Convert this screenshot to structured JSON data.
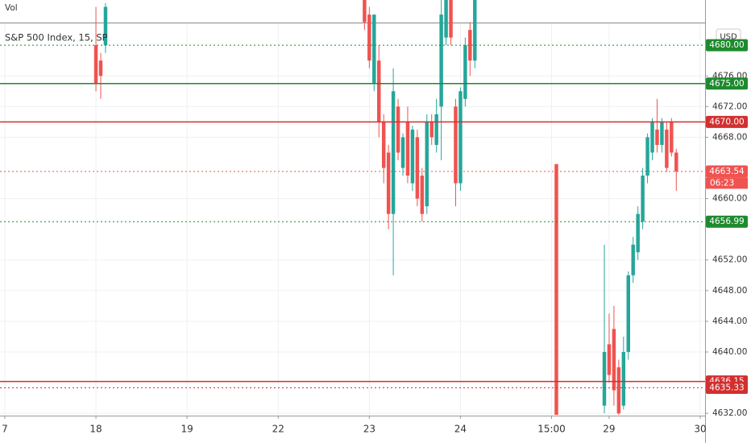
{
  "chart_data": {
    "type": "candlestick",
    "title": "S&P 500 Index, 15, SP",
    "volume_label": "Vol",
    "currency": "USD",
    "up_color": "#26a69a",
    "down_color": "#ef5350",
    "grid": true,
    "xlim": [
      0,
      147
    ],
    "ylim": [
      4631.7,
      4685.9
    ],
    "xticks": [
      {
        "value": 1,
        "label": "7"
      },
      {
        "value": 20,
        "label": "18"
      },
      {
        "value": 39,
        "label": "19"
      },
      {
        "value": 58,
        "label": "22"
      },
      {
        "value": 77,
        "label": "23"
      },
      {
        "value": 96,
        "label": "24"
      },
      {
        "value": 115,
        "label": "15:00"
      },
      {
        "value": 127,
        "label": "29"
      },
      {
        "value": 146,
        "label": "30"
      }
    ],
    "yticks": [
      {
        "value": 4632,
        "label": "4632.00"
      },
      {
        "value": 4640,
        "label": "4640.00"
      },
      {
        "value": 4644,
        "label": "4644.00"
      },
      {
        "value": 4648,
        "label": "4648.00"
      },
      {
        "value": 4652,
        "label": "4652.00"
      },
      {
        "value": 4660,
        "label": "4660.00"
      },
      {
        "value": 4668,
        "label": "4668.00"
      },
      {
        "value": 4672,
        "label": "4672.00"
      },
      {
        "value": 4676,
        "label": "4676.00"
      }
    ],
    "x": [
      20,
      21,
      22,
      76,
      77,
      78,
      79,
      80,
      81,
      82,
      83,
      84,
      85,
      86,
      87,
      88,
      89,
      90,
      91,
      92,
      93,
      94,
      95,
      96,
      97,
      98,
      99,
      116,
      126,
      127,
      128,
      129,
      130,
      131,
      132,
      133,
      134,
      135,
      136,
      137,
      138,
      139,
      140,
      141
    ],
    "open": [
      4680,
      4678,
      4680,
      4686,
      4684,
      4675,
      4678,
      4670,
      4666,
      4658,
      4672,
      4664,
      4670,
      4662,
      4668,
      4663,
      4659,
      4670,
      4667,
      4672,
      4681,
      4686,
      4672,
      4662,
      4673,
      4682,
      4678,
      4664.5,
      4633,
      4641,
      4643,
      4638,
      4633,
      4640,
      4650,
      4653,
      4657,
      4663,
      4666,
      4669,
      4667,
      4669,
      4670,
      4666
    ],
    "high": [
      4685,
      4679,
      4685.5,
      4685.9,
      4685,
      4684,
      4680,
      4671,
      4667,
      4677,
      4673,
      4668.5,
      4672,
      4669.5,
      4669,
      4664,
      4671,
      4671,
      4673,
      4686,
      4685.9,
      4686,
      4673,
      4674.5,
      4681,
      4683,
      4685.9,
      4664.5,
      4654,
      4645,
      4646,
      4639,
      4642,
      4650.5,
      4655,
      4659,
      4664,
      4668.5,
      4670.5,
      4673,
      4670.5,
      4670,
      4670.5,
      4666.5
    ],
    "low": [
      4674,
      4673,
      4679,
      4682,
      4677,
      4674,
      4668,
      4662,
      4656,
      4650,
      4665,
      4663,
      4662,
      4661,
      4659,
      4657,
      4658,
      4667,
      4666,
      4665,
      4680,
      4680,
      4659,
      4661,
      4672,
      4676,
      4677,
      4631.8,
      4632,
      4636,
      4633,
      4631.8,
      4632.5,
      4639,
      4649,
      4652,
      4656,
      4662,
      4665,
      4666,
      4666,
      4663.5,
      4665.5,
      4661
    ],
    "close": [
      4675,
      4676,
      4685,
      4683,
      4678,
      4684,
      4670,
      4664,
      4658,
      4674,
      4666,
      4668,
      4663,
      4669,
      4660,
      4658,
      4670,
      4668,
      4671,
      4684,
      4685.9,
      4681,
      4662,
      4674,
      4680,
      4678,
      4685.9,
      4631.8,
      4640,
      4637,
      4635,
      4632,
      4640,
      4650,
      4654,
      4658,
      4663,
      4668,
      4670,
      4667,
      4670,
      4664,
      4666,
      4663.54
    ],
    "price_lines": [
      {
        "value": 4680,
        "label": "4680.00",
        "color": "#1e8a2e",
        "style": "dotted"
      },
      {
        "value": 4675,
        "label": "4675.00",
        "color": "#1e8a2e",
        "style": "solid"
      },
      {
        "value": 4670,
        "label": "4670.00",
        "color": "#d32f2f",
        "style": "solid"
      },
      {
        "value": 4663.54,
        "label": "4663.54",
        "color": "#ef5350",
        "style": "dotted"
      },
      {
        "value": 4656.99,
        "label": "4656.99",
        "color": "#1e8a2e",
        "style": "dotted"
      },
      {
        "value": 4636.15,
        "label": "4636.15",
        "color": "#d32f2f",
        "style": "solid"
      },
      {
        "value": 4635.33,
        "label": "4635.33",
        "color": "#d32f2f",
        "style": "dotted"
      }
    ],
    "countdown": "06:23"
  }
}
